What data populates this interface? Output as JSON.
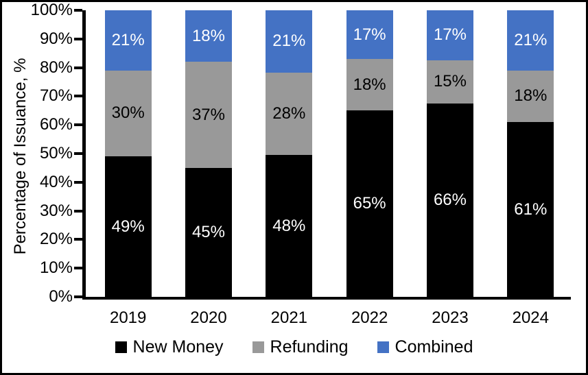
{
  "chart_data": {
    "type": "bar",
    "stacked": true,
    "title": "",
    "xlabel": "",
    "ylabel": "Percentage of Issuance, %",
    "categories": [
      "2019",
      "2020",
      "2021",
      "2022",
      "2023",
      "2024"
    ],
    "series": [
      {
        "name": "New Money",
        "color": "#000000",
        "label_color": "#ffffff",
        "values": [
          49,
          45,
          48,
          65,
          66,
          61
        ]
      },
      {
        "name": "Refunding",
        "color": "#999999",
        "label_color": "#000000",
        "values": [
          30,
          37,
          28,
          18,
          15,
          18
        ]
      },
      {
        "name": "Combined",
        "color": "#4472C4",
        "label_color": "#ffffff",
        "values": [
          21,
          18,
          21,
          17,
          17,
          21
        ]
      }
    ],
    "value_suffix": "%",
    "yticks": [
      "0%",
      "10%",
      "20%",
      "30%",
      "40%",
      "50%",
      "60%",
      "70%",
      "80%",
      "90%",
      "100%"
    ],
    "ylim": [
      0,
      100
    ],
    "grid": false,
    "legend_position": "bottom"
  },
  "colors": {
    "axis": "#000000",
    "background": "#ffffff",
    "frame_border": "#000000"
  }
}
